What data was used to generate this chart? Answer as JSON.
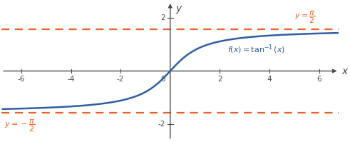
{
  "xlim": [
    -6.8,
    6.8
  ],
  "ylim": [
    -2.6,
    2.6
  ],
  "xticks": [
    -6,
    -4,
    -2,
    2,
    4,
    6
  ],
  "yticks_pos": [
    2
  ],
  "yticks_neg": [
    -2
  ],
  "hline_y": 1.5707963267948966,
  "curve_color": "#2E5FA3",
  "hline_color": "#E8622A",
  "axis_color": "#4a4a4a",
  "curve_linewidth": 1.8,
  "hline_linewidth": 1.6,
  "tick_fontsize": 7.5,
  "label_fontsize": 8.5,
  "axis_label_fontsize": 10
}
